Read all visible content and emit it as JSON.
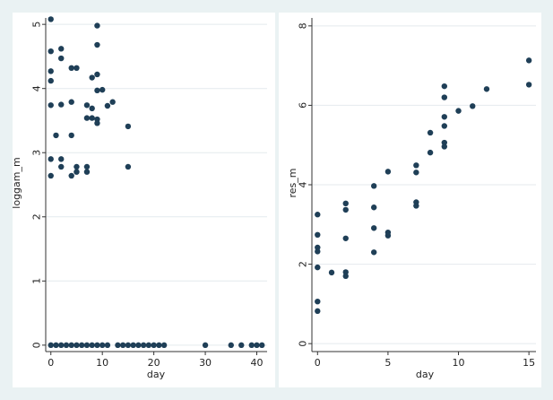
{
  "chart_data": [
    {
      "type": "scatter",
      "xlabel": "day",
      "ylabel": "loggam_m",
      "xlim": [
        -1,
        42
      ],
      "ylim": [
        -0.1,
        5.1
      ],
      "xticks": [
        "0",
        "10",
        "20",
        "30",
        "40"
      ],
      "xtick_values": [
        0,
        10,
        20,
        30,
        40
      ],
      "yticks": [
        "0",
        "1",
        "2",
        "3",
        "4",
        "5"
      ],
      "ytick_values": [
        0,
        1,
        2,
        3,
        4,
        5
      ],
      "grid": true,
      "legend": "none",
      "marker_color": "#1f3f57",
      "points": [
        [
          0,
          5.08
        ],
        [
          0,
          4.58
        ],
        [
          0,
          4.27
        ],
        [
          0,
          4.12
        ],
        [
          0,
          3.74
        ],
        [
          0,
          2.9
        ],
        [
          0,
          2.64
        ],
        [
          1,
          3.27
        ],
        [
          2,
          4.62
        ],
        [
          2,
          4.47
        ],
        [
          2,
          3.75
        ],
        [
          2,
          2.9
        ],
        [
          2,
          2.78
        ],
        [
          4,
          4.32
        ],
        [
          4,
          3.79
        ],
        [
          4,
          3.27
        ],
        [
          4,
          2.64
        ],
        [
          5,
          4.32
        ],
        [
          5,
          2.78
        ],
        [
          5,
          2.7
        ],
        [
          7,
          3.74
        ],
        [
          7,
          3.54
        ],
        [
          7,
          2.78
        ],
        [
          7,
          2.7
        ],
        [
          8,
          4.17
        ],
        [
          8,
          3.69
        ],
        [
          8,
          3.54
        ],
        [
          9,
          4.98
        ],
        [
          9,
          4.68
        ],
        [
          9,
          4.22
        ],
        [
          9,
          3.97
        ],
        [
          9,
          3.52
        ],
        [
          9,
          3.46
        ],
        [
          10,
          3.98
        ],
        [
          11,
          3.73
        ],
        [
          12,
          3.79
        ],
        [
          15,
          3.41
        ],
        [
          15,
          2.78
        ],
        [
          0,
          0
        ],
        [
          1,
          0
        ],
        [
          2,
          0
        ],
        [
          3,
          0
        ],
        [
          4,
          0
        ],
        [
          5,
          0
        ],
        [
          6,
          0
        ],
        [
          7,
          0
        ],
        [
          8,
          0
        ],
        [
          9,
          0
        ],
        [
          10,
          0
        ],
        [
          11,
          0
        ],
        [
          13,
          0
        ],
        [
          14,
          0
        ],
        [
          15,
          0
        ],
        [
          16,
          0
        ],
        [
          17,
          0
        ],
        [
          18,
          0
        ],
        [
          19,
          0
        ],
        [
          20,
          0
        ],
        [
          21,
          0
        ],
        [
          22,
          0
        ],
        [
          30,
          0
        ],
        [
          35,
          0
        ],
        [
          37,
          0
        ],
        [
          39,
          0
        ],
        [
          40,
          0
        ],
        [
          41,
          0
        ]
      ]
    },
    {
      "type": "scatter",
      "xlabel": "day",
      "ylabel": "res_m",
      "xlim": [
        -0.4,
        15.5
      ],
      "ylim": [
        -0.2,
        8.2
      ],
      "xticks": [
        "0",
        "5",
        "10",
        "15"
      ],
      "xtick_values": [
        0,
        5,
        10,
        15
      ],
      "yticks": [
        "0",
        "2",
        "4",
        "6",
        "8"
      ],
      "ytick_values": [
        0,
        2,
        4,
        6,
        8
      ],
      "grid": true,
      "legend": "none",
      "marker_color": "#1f3f57",
      "points": [
        [
          0,
          3.25
        ],
        [
          0,
          2.74
        ],
        [
          0,
          2.42
        ],
        [
          0,
          2.32
        ],
        [
          0,
          1.92
        ],
        [
          0,
          1.06
        ],
        [
          0,
          0.82
        ],
        [
          1,
          1.79
        ],
        [
          2,
          3.53
        ],
        [
          2,
          3.37
        ],
        [
          2,
          2.65
        ],
        [
          2,
          1.8
        ],
        [
          2,
          1.7
        ],
        [
          4,
          3.97
        ],
        [
          4,
          3.43
        ],
        [
          4,
          2.91
        ],
        [
          4,
          2.3
        ],
        [
          5,
          4.33
        ],
        [
          5,
          2.8
        ],
        [
          5,
          2.72
        ],
        [
          7,
          4.49
        ],
        [
          7,
          4.31
        ],
        [
          7,
          3.56
        ],
        [
          7,
          3.47
        ],
        [
          8,
          5.31
        ],
        [
          8,
          4.81
        ],
        [
          9,
          6.48
        ],
        [
          9,
          6.2
        ],
        [
          9,
          5.71
        ],
        [
          9,
          5.48
        ],
        [
          9,
          5.06
        ],
        [
          9,
          4.96
        ],
        [
          10,
          5.86
        ],
        [
          11,
          5.98
        ],
        [
          12,
          6.41
        ],
        [
          15,
          7.13
        ],
        [
          15,
          6.52
        ]
      ]
    }
  ]
}
